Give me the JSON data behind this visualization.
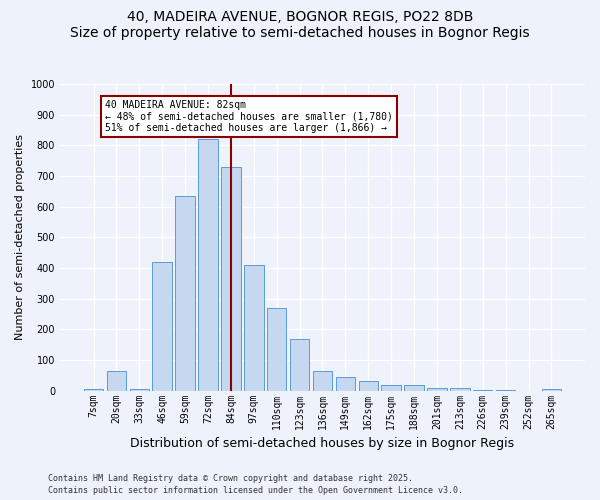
{
  "title": "40, MADEIRA AVENUE, BOGNOR REGIS, PO22 8DB",
  "subtitle": "Size of property relative to semi-detached houses in Bognor Regis",
  "xlabel": "Distribution of semi-detached houses by size in Bognor Regis",
  "ylabel": "Number of semi-detached properties",
  "categories": [
    "7sqm",
    "20sqm",
    "33sqm",
    "46sqm",
    "59sqm",
    "72sqm",
    "84sqm",
    "97sqm",
    "110sqm",
    "123sqm",
    "136sqm",
    "149sqm",
    "162sqm",
    "175sqm",
    "188sqm",
    "201sqm",
    "213sqm",
    "226sqm",
    "239sqm",
    "252sqm",
    "265sqm"
  ],
  "values": [
    5,
    65,
    5,
    420,
    635,
    820,
    730,
    410,
    270,
    170,
    65,
    45,
    30,
    18,
    18,
    10,
    10,
    3,
    3,
    0,
    5
  ],
  "bar_color": "#c5d8f0",
  "bar_edge_color": "#5b9bd5",
  "vline_color": "#8b0000",
  "annotation_text": "40 MADEIRA AVENUE: 82sqm\n← 48% of semi-detached houses are smaller (1,780)\n51% of semi-detached houses are larger (1,866) →",
  "annotation_box_color": "#ffffff",
  "annotation_border_color": "#8b0000",
  "ylim": [
    0,
    1000
  ],
  "yticks": [
    0,
    100,
    200,
    300,
    400,
    500,
    600,
    700,
    800,
    900,
    1000
  ],
  "footer_text": "Contains HM Land Registry data © Crown copyright and database right 2025.\nContains public sector information licensed under the Open Government Licence v3.0.",
  "bg_color": "#eef2fb",
  "grid_color": "#ffffff",
  "title_fontsize": 10,
  "axis_label_fontsize": 8,
  "tick_fontsize": 7,
  "footer_fontsize": 6,
  "vline_x_index": 6
}
